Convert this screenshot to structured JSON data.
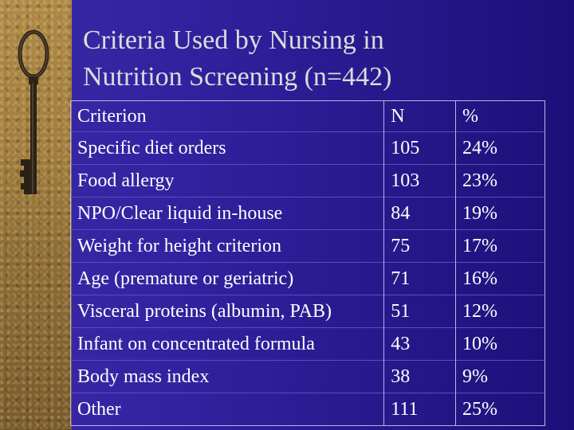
{
  "slide": {
    "title_line1": "Criteria Used by Nursing in",
    "title_line2": "Nutrition Screening (n=442)"
  },
  "table": {
    "headers": [
      "Criterion",
      "N",
      "%"
    ],
    "rows": [
      {
        "criterion": "Specific diet orders",
        "n": "105",
        "pct": "24%"
      },
      {
        "criterion": "Food allergy",
        "n": "103",
        "pct": "23%"
      },
      {
        "criterion": "NPO/Clear liquid in-house",
        "n": "84",
        "pct": "19%"
      },
      {
        "criterion": "Weight for height criterion",
        "n": "75",
        "pct": "17%"
      },
      {
        "criterion": "Age (premature or geriatric)",
        "n": "71",
        "pct": "16%"
      },
      {
        "criterion": "Visceral proteins (albumin, PAB)",
        "n": "51",
        "pct": "12%"
      },
      {
        "criterion": "Infant on concentrated formula",
        "n": "43",
        "pct": "10%"
      },
      {
        "criterion": "Body mass index",
        "n": "38",
        "pct": "9%"
      },
      {
        "criterion": "Other",
        "n": "111",
        "pct": "25%"
      }
    ]
  },
  "decor": {
    "side_image_icon": "antique-key-icon",
    "background_color": "#3322a0",
    "title_color": "#dcdcdc",
    "text_color": "#ffffff"
  }
}
